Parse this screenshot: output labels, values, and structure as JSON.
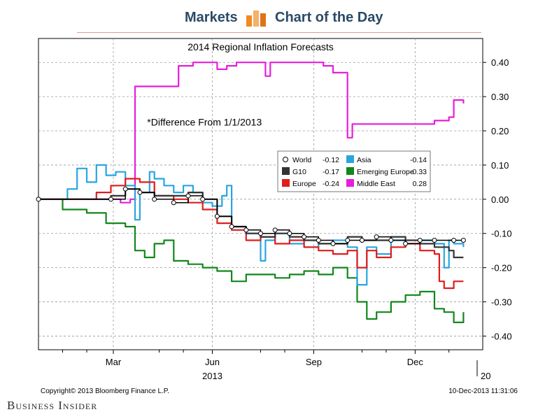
{
  "header": {
    "left": "Markets",
    "right": "Chart of the Day",
    "logo_icon": "bar-chart-icon",
    "accent_color": "#f08a24"
  },
  "footer": {
    "brand": "Business Insider"
  },
  "chart_data": {
    "type": "line",
    "title": "2014 Regional Inflation Forecasts",
    "annotation": "*Difference From 1/1/2013",
    "x_months": [
      "Mar",
      "Jun",
      "Sep",
      "Dec"
    ],
    "x_year_label": "2013",
    "x_next_year_fragment": "20",
    "y_ticks": [
      "0.40",
      "0.30",
      "0.20",
      "0.10",
      "0.00",
      "-0.10",
      "-0.20",
      "-0.30",
      "-0.40"
    ],
    "ylim": [
      -0.44,
      0.47
    ],
    "grid": true,
    "legend_position": "right",
    "source": "Copyright© 2013 Bloomberg Finance L.P.",
    "timestamp": "10-Dec-2013 11:31:06",
    "series": [
      {
        "name": "World",
        "legend_value": "-0.12",
        "color": "#000000",
        "marker": "circle",
        "values": [
          [
            0,
            0
          ],
          [
            15,
            0
          ],
          [
            18,
            0.03
          ],
          [
            21,
            0.02
          ],
          [
            24,
            0
          ],
          [
            28,
            -0.01
          ],
          [
            31,
            0.01
          ],
          [
            34,
            0
          ],
          [
            37,
            -0.05
          ],
          [
            40,
            -0.08
          ],
          [
            43,
            -0.09
          ],
          [
            46,
            -0.1
          ],
          [
            49,
            -0.09
          ],
          [
            52,
            -0.1
          ],
          [
            55,
            -0.11
          ],
          [
            58,
            -0.12
          ],
          [
            61,
            -0.13
          ],
          [
            64,
            -0.12
          ],
          [
            67,
            -0.12
          ],
          [
            70,
            -0.11
          ],
          [
            73,
            -0.12
          ],
          [
            76,
            -0.13
          ],
          [
            79,
            -0.12
          ],
          [
            82,
            -0.12
          ],
          [
            86,
            -0.12
          ],
          [
            88,
            -0.12
          ]
        ]
      },
      {
        "name": "G10",
        "legend_value": "-0.17",
        "color": "#333333",
        "values": [
          [
            0,
            0
          ],
          [
            15,
            0.01
          ],
          [
            18,
            0.03
          ],
          [
            21,
            0.02
          ],
          [
            24,
            0.01
          ],
          [
            28,
            0.01
          ],
          [
            31,
            0.02
          ],
          [
            34,
            0
          ],
          [
            37,
            -0.05
          ],
          [
            40,
            -0.08
          ],
          [
            43,
            -0.1
          ],
          [
            46,
            -0.11
          ],
          [
            49,
            -0.1
          ],
          [
            52,
            -0.11
          ],
          [
            55,
            -0.12
          ],
          [
            58,
            -0.13
          ],
          [
            61,
            -0.13
          ],
          [
            64,
            -0.11
          ],
          [
            67,
            -0.12
          ],
          [
            70,
            -0.12
          ],
          [
            73,
            -0.11
          ],
          [
            76,
            -0.12
          ],
          [
            79,
            -0.13
          ],
          [
            82,
            -0.14
          ],
          [
            85,
            -0.15
          ],
          [
            86,
            -0.17
          ],
          [
            88,
            -0.17
          ]
        ]
      },
      {
        "name": "Asia",
        "legend_value": "-0.14",
        "color": "#29a5e0",
        "values": [
          [
            0,
            0
          ],
          [
            6,
            0.03
          ],
          [
            8,
            0.09
          ],
          [
            10,
            0.05
          ],
          [
            12,
            0.1
          ],
          [
            14,
            0.07
          ],
          [
            16,
            0.08
          ],
          [
            18,
            0.04
          ],
          [
            20,
            -0.06
          ],
          [
            21,
            0.02
          ],
          [
            23,
            0.08
          ],
          [
            24,
            0.06
          ],
          [
            26,
            0.04
          ],
          [
            28,
            0.02
          ],
          [
            30,
            0.04
          ],
          [
            32,
            0.02
          ],
          [
            34,
            -0.01
          ],
          [
            36,
            -0.02
          ],
          [
            38,
            0.01
          ],
          [
            39,
            0.04
          ],
          [
            40,
            -0.08
          ],
          [
            43,
            -0.1
          ],
          [
            46,
            -0.18
          ],
          [
            47,
            -0.12
          ],
          [
            49,
            -0.1
          ],
          [
            52,
            -0.13
          ],
          [
            55,
            -0.14
          ],
          [
            58,
            -0.13
          ],
          [
            61,
            -0.12
          ],
          [
            64,
            -0.14
          ],
          [
            66,
            -0.25
          ],
          [
            68,
            -0.14
          ],
          [
            70,
            -0.16
          ],
          [
            73,
            -0.12
          ],
          [
            76,
            -0.13
          ],
          [
            79,
            -0.12
          ],
          [
            82,
            -0.13
          ],
          [
            84,
            -0.2
          ],
          [
            85,
            -0.12
          ],
          [
            86,
            -0.13
          ],
          [
            88,
            -0.14
          ]
        ]
      },
      {
        "name": "Europe",
        "legend_value": "-0.24",
        "color": "#e01c1c",
        "values": [
          [
            0,
            0
          ],
          [
            9,
            0
          ],
          [
            12,
            0.02
          ],
          [
            15,
            0.04
          ],
          [
            18,
            0.06
          ],
          [
            21,
            0.05
          ],
          [
            24,
            0.01
          ],
          [
            28,
            0
          ],
          [
            31,
            -0.01
          ],
          [
            34,
            -0.03
          ],
          [
            37,
            -0.07
          ],
          [
            40,
            -0.09
          ],
          [
            43,
            -0.12
          ],
          [
            46,
            -0.11
          ],
          [
            49,
            -0.13
          ],
          [
            52,
            -0.12
          ],
          [
            55,
            -0.14
          ],
          [
            58,
            -0.15
          ],
          [
            61,
            -0.16
          ],
          [
            64,
            -0.15
          ],
          [
            66,
            -0.2
          ],
          [
            68,
            -0.15
          ],
          [
            70,
            -0.17
          ],
          [
            73,
            -0.14
          ],
          [
            76,
            -0.13
          ],
          [
            79,
            -0.15
          ],
          [
            82,
            -0.16
          ],
          [
            83,
            -0.24
          ],
          [
            84,
            -0.26
          ],
          [
            86,
            -0.24
          ],
          [
            88,
            -0.24
          ]
        ]
      },
      {
        "name": "Emerging Europe",
        "legend_value": "-0.33",
        "color": "#11871b",
        "values": [
          [
            0,
            0
          ],
          [
            5,
            -0.03
          ],
          [
            10,
            -0.04
          ],
          [
            14,
            -0.07
          ],
          [
            18,
            -0.08
          ],
          [
            20,
            -0.15
          ],
          [
            22,
            -0.17
          ],
          [
            24,
            -0.13
          ],
          [
            26,
            -0.12
          ],
          [
            28,
            -0.18
          ],
          [
            31,
            -0.19
          ],
          [
            34,
            -0.2
          ],
          [
            37,
            -0.21
          ],
          [
            40,
            -0.24
          ],
          [
            43,
            -0.22
          ],
          [
            46,
            -0.22
          ],
          [
            49,
            -0.23
          ],
          [
            52,
            -0.22
          ],
          [
            55,
            -0.21
          ],
          [
            58,
            -0.22
          ],
          [
            61,
            -0.2
          ],
          [
            64,
            -0.23
          ],
          [
            66,
            -0.3
          ],
          [
            68,
            -0.35
          ],
          [
            70,
            -0.33
          ],
          [
            73,
            -0.3
          ],
          [
            76,
            -0.28
          ],
          [
            79,
            -0.27
          ],
          [
            82,
            -0.32
          ],
          [
            84,
            -0.33
          ],
          [
            86,
            -0.36
          ],
          [
            88,
            -0.33
          ]
        ]
      },
      {
        "name": "Middle East",
        "legend_value": "0.28",
        "color": "#e61edb",
        "values": [
          [
            0,
            0
          ],
          [
            14,
            0
          ],
          [
            17,
            -0.01
          ],
          [
            19,
            0
          ],
          [
            20,
            0.33
          ],
          [
            24,
            0.33
          ],
          [
            28,
            0.33
          ],
          [
            29,
            0.39
          ],
          [
            32,
            0.4
          ],
          [
            36,
            0.4
          ],
          [
            37,
            0.38
          ],
          [
            39,
            0.39
          ],
          [
            41,
            0.4
          ],
          [
            46,
            0.4
          ],
          [
            47,
            0.36
          ],
          [
            48,
            0.4
          ],
          [
            55,
            0.4
          ],
          [
            59,
            0.39
          ],
          [
            61,
            0.37
          ],
          [
            63,
            0.37
          ],
          [
            64,
            0.18
          ],
          [
            65,
            0.22
          ],
          [
            70,
            0.22
          ],
          [
            75,
            0.22
          ],
          [
            80,
            0.22
          ],
          [
            82,
            0.23
          ],
          [
            85,
            0.24
          ],
          [
            86,
            0.29
          ],
          [
            88,
            0.28
          ]
        ]
      }
    ]
  }
}
